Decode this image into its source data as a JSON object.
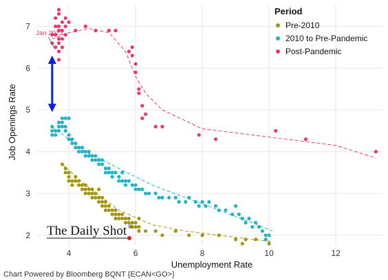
{
  "chart_data": {
    "type": "scatter",
    "xlabel": "Unemployment Rate",
    "ylabel": "Job Openings Rate",
    "xlim": [
      3.05,
      13.4
    ],
    "ylim": [
      1.75,
      7.5
    ],
    "xticks": [
      4,
      6,
      8,
      10,
      12
    ],
    "yticks": [
      2,
      3,
      4,
      5,
      6,
      7
    ],
    "grid": true,
    "legend": {
      "title": "Period",
      "position": "top-right"
    },
    "annotation": {
      "text": "Jan 2023",
      "x": 3.55,
      "y": 6.5,
      "color": "#e8336f"
    },
    "arrow": {
      "x": 3.5,
      "y_from": 4.95,
      "y_to": 6.3,
      "color": "#0a1ee6",
      "style": "double-headed"
    },
    "series": [
      {
        "name": "Pre-2010",
        "color": "#a3960f",
        "points": [
          [
            3.8,
            3.7
          ],
          [
            3.9,
            3.6
          ],
          [
            3.9,
            3.5
          ],
          [
            4.0,
            3.4
          ],
          [
            4.0,
            3.5
          ],
          [
            4.0,
            3.3
          ],
          [
            4.1,
            3.3
          ],
          [
            4.1,
            3.2
          ],
          [
            4.2,
            3.4
          ],
          [
            4.2,
            3.3
          ],
          [
            4.3,
            3.3
          ],
          [
            4.3,
            3.2
          ],
          [
            4.4,
            3.2
          ],
          [
            4.4,
            3.1
          ],
          [
            4.5,
            3.2
          ],
          [
            4.5,
            3.1
          ],
          [
            4.5,
            3.0
          ],
          [
            4.6,
            3.1
          ],
          [
            4.6,
            3.0
          ],
          [
            4.7,
            3.1
          ],
          [
            4.7,
            3.0
          ],
          [
            4.7,
            2.9
          ],
          [
            4.8,
            3.0
          ],
          [
            4.8,
            2.9
          ],
          [
            4.9,
            2.9
          ],
          [
            4.9,
            2.8
          ],
          [
            4.9,
            3.1
          ],
          [
            5.0,
            2.9
          ],
          [
            5.0,
            2.8
          ],
          [
            5.0,
            2.7
          ],
          [
            5.1,
            2.8
          ],
          [
            5.1,
            2.7
          ],
          [
            5.1,
            2.6
          ],
          [
            5.2,
            2.7
          ],
          [
            5.2,
            2.6
          ],
          [
            5.3,
            2.6
          ],
          [
            5.3,
            2.5
          ],
          [
            5.4,
            2.6
          ],
          [
            5.4,
            2.5
          ],
          [
            5.4,
            2.4
          ],
          [
            5.5,
            2.5
          ],
          [
            5.5,
            2.4
          ],
          [
            5.6,
            2.4
          ],
          [
            5.6,
            2.5
          ],
          [
            5.7,
            2.4
          ],
          [
            5.7,
            2.3
          ],
          [
            5.8,
            2.3
          ],
          [
            5.8,
            2.4
          ],
          [
            5.9,
            2.3
          ],
          [
            5.9,
            2.2
          ],
          [
            6.0,
            2.3
          ],
          [
            6.0,
            2.2
          ],
          [
            6.1,
            2.4
          ],
          [
            6.1,
            2.2
          ],
          [
            6.1,
            2.1
          ],
          [
            6.3,
            2.1
          ],
          [
            6.6,
            2.1
          ],
          [
            6.8,
            2.0
          ],
          [
            7.2,
            2.1
          ],
          [
            7.6,
            2.0
          ],
          [
            8.0,
            2.0
          ],
          [
            8.5,
            2.0
          ],
          [
            9.0,
            1.9
          ],
          [
            9.3,
            1.9
          ],
          [
            9.6,
            1.9
          ],
          [
            9.9,
            1.9
          ],
          [
            10.0,
            1.8
          ],
          [
            9.2,
            1.8
          ]
        ]
      },
      {
        "name": "2010 to Pre-Pandemic",
        "color": "#1fb3c4",
        "points": [
          [
            3.5,
            4.4
          ],
          [
            3.5,
            4.5
          ],
          [
            3.5,
            4.6
          ],
          [
            3.6,
            4.5
          ],
          [
            3.6,
            4.4
          ],
          [
            3.7,
            4.7
          ],
          [
            3.7,
            4.6
          ],
          [
            3.7,
            4.5
          ],
          [
            3.8,
            4.7
          ],
          [
            3.8,
            4.6
          ],
          [
            3.8,
            4.8
          ],
          [
            3.9,
            4.8
          ],
          [
            3.9,
            4.6
          ],
          [
            3.9,
            4.5
          ],
          [
            4.0,
            4.8
          ],
          [
            4.0,
            4.4
          ],
          [
            4.0,
            4.3
          ],
          [
            4.1,
            4.3
          ],
          [
            4.1,
            4.2
          ],
          [
            4.2,
            4.2
          ],
          [
            4.2,
            4.1
          ],
          [
            4.3,
            4.1
          ],
          [
            4.3,
            4.0
          ],
          [
            4.4,
            4.1
          ],
          [
            4.4,
            4.0
          ],
          [
            4.5,
            4.0
          ],
          [
            4.5,
            3.9
          ],
          [
            4.6,
            4.0
          ],
          [
            4.6,
            3.9
          ],
          [
            4.7,
            3.9
          ],
          [
            4.7,
            3.8
          ],
          [
            4.8,
            3.9
          ],
          [
            4.8,
            3.8
          ],
          [
            4.9,
            3.8
          ],
          [
            4.9,
            3.7
          ],
          [
            5.0,
            3.8
          ],
          [
            5.0,
            3.7
          ],
          [
            5.1,
            3.6
          ],
          [
            5.1,
            3.5
          ],
          [
            5.2,
            3.6
          ],
          [
            5.2,
            3.5
          ],
          [
            5.3,
            3.5
          ],
          [
            5.3,
            3.4
          ],
          [
            5.4,
            3.5
          ],
          [
            5.5,
            3.4
          ],
          [
            5.5,
            3.3
          ],
          [
            5.6,
            3.5
          ],
          [
            5.6,
            3.3
          ],
          [
            5.7,
            3.3
          ],
          [
            5.7,
            3.2
          ],
          [
            5.8,
            3.3
          ],
          [
            5.9,
            3.2
          ],
          [
            6.0,
            3.2
          ],
          [
            6.0,
            3.1
          ],
          [
            6.1,
            3.1
          ],
          [
            6.2,
            3.1
          ],
          [
            6.3,
            3.0
          ],
          [
            6.4,
            3.0
          ],
          [
            6.6,
            3.0
          ],
          [
            6.7,
            2.9
          ],
          [
            6.8,
            2.9
          ],
          [
            7.0,
            2.9
          ],
          [
            7.2,
            2.9
          ],
          [
            7.3,
            2.8
          ],
          [
            7.5,
            2.8
          ],
          [
            7.6,
            2.9
          ],
          [
            7.8,
            2.8
          ],
          [
            7.9,
            2.7
          ],
          [
            8.0,
            2.8
          ],
          [
            8.1,
            2.7
          ],
          [
            8.2,
            2.8
          ],
          [
            8.4,
            2.7
          ],
          [
            8.5,
            2.6
          ],
          [
            8.7,
            2.6
          ],
          [
            8.9,
            2.5
          ],
          [
            9.0,
            2.7
          ],
          [
            9.1,
            2.5
          ],
          [
            9.2,
            2.4
          ],
          [
            9.3,
            2.3
          ],
          [
            9.4,
            2.4
          ],
          [
            9.5,
            2.2
          ],
          [
            9.6,
            2.3
          ],
          [
            9.7,
            2.2
          ],
          [
            9.8,
            2.1
          ],
          [
            9.9,
            2.0
          ],
          [
            10.0,
            2.0
          ],
          [
            9.9,
            1.9
          ]
        ]
      },
      {
        "name": "Post-Pandemic",
        "color": "#f0346e",
        "points": [
          [
            3.5,
            6.6
          ],
          [
            3.5,
            6.8
          ],
          [
            3.6,
            7.0
          ],
          [
            3.6,
            7.2
          ],
          [
            3.6,
            6.8
          ],
          [
            3.6,
            6.5
          ],
          [
            3.7,
            7.4
          ],
          [
            3.7,
            7.3
          ],
          [
            3.7,
            7.0
          ],
          [
            3.7,
            6.9
          ],
          [
            3.7,
            6.7
          ],
          [
            3.7,
            6.6
          ],
          [
            3.7,
            6.4
          ],
          [
            3.7,
            6.2
          ],
          [
            3.8,
            7.1
          ],
          [
            3.8,
            6.9
          ],
          [
            3.8,
            6.7
          ],
          [
            3.8,
            6.5
          ],
          [
            3.9,
            7.2
          ],
          [
            3.9,
            7.0
          ],
          [
            3.9,
            6.8
          ],
          [
            4.0,
            7.1
          ],
          [
            4.2,
            6.9
          ],
          [
            4.5,
            7.0
          ],
          [
            4.8,
            6.9
          ],
          [
            5.2,
            6.9
          ],
          [
            5.4,
            6.9
          ],
          [
            5.8,
            6.4
          ],
          [
            5.9,
            6.5
          ],
          [
            5.9,
            6.3
          ],
          [
            6.0,
            6.1
          ],
          [
            6.0,
            5.9
          ],
          [
            6.1,
            5.5
          ],
          [
            6.1,
            5.4
          ],
          [
            6.2,
            5.1
          ],
          [
            6.2,
            4.8
          ],
          [
            6.3,
            4.9
          ],
          [
            6.6,
            4.6
          ],
          [
            6.8,
            4.6
          ],
          [
            7.9,
            4.4
          ],
          [
            8.4,
            4.3
          ],
          [
            10.2,
            4.5
          ],
          [
            11.1,
            4.3
          ],
          [
            13.2,
            4.0
          ]
        ]
      }
    ],
    "trendlines": [
      {
        "series": "Pre-2010",
        "points": [
          [
            3.8,
            3.7
          ],
          [
            4.5,
            3.2
          ],
          [
            5.5,
            2.6
          ],
          [
            6.5,
            2.25
          ],
          [
            7.5,
            2.1
          ],
          [
            8.5,
            2.0
          ],
          [
            9.5,
            1.9
          ],
          [
            10.1,
            1.85
          ]
        ]
      },
      {
        "series": "2010 to Pre-Pandemic",
        "points": [
          [
            3.5,
            4.6
          ],
          [
            4.5,
            4.0
          ],
          [
            5.5,
            3.6
          ],
          [
            6.5,
            3.2
          ],
          [
            7.5,
            2.9
          ],
          [
            8.5,
            2.6
          ],
          [
            9.5,
            2.3
          ],
          [
            10.1,
            2.1
          ]
        ]
      },
      {
        "series": "Post-Pandemic",
        "points": [
          [
            3.5,
            6.7
          ],
          [
            4.0,
            6.85
          ],
          [
            4.6,
            6.95
          ],
          [
            5.2,
            6.85
          ],
          [
            5.7,
            6.4
          ],
          [
            6.0,
            5.8
          ],
          [
            6.3,
            5.4
          ],
          [
            6.8,
            5.0
          ],
          [
            8.0,
            4.55
          ],
          [
            10.0,
            4.35
          ],
          [
            12.0,
            4.15
          ],
          [
            13.2,
            3.85
          ]
        ]
      }
    ]
  },
  "footer": {
    "powered_by": "Chart Powered by Bloomberg BQNT   {ECAN<GO>}",
    "brand": "The Daily Shot",
    "brand_mark": "®"
  }
}
